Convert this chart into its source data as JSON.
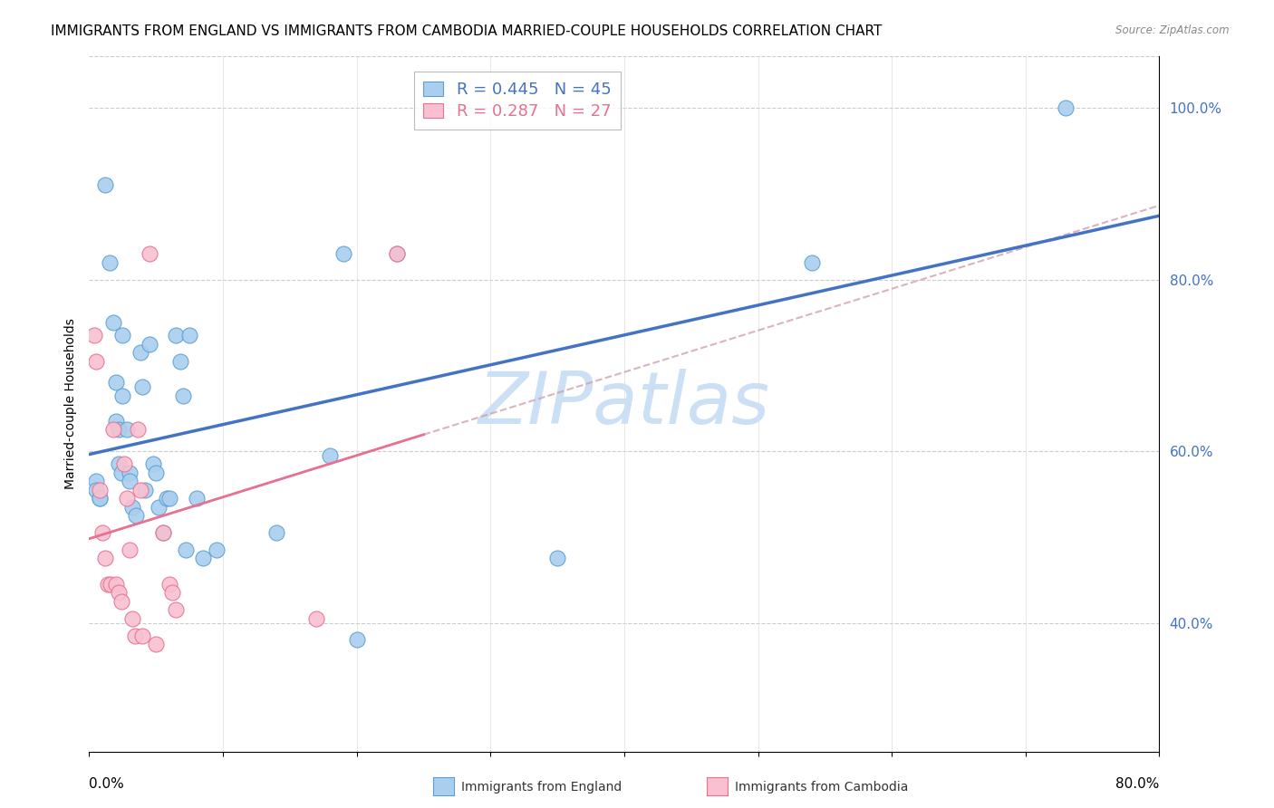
{
  "title": "IMMIGRANTS FROM ENGLAND VS IMMIGRANTS FROM CAMBODIA MARRIED-COUPLE HOUSEHOLDS CORRELATION CHART",
  "source": "Source: ZipAtlas.com",
  "ylabel": "Married-couple Households",
  "right_yticks": [
    "40.0%",
    "60.0%",
    "80.0%",
    "100.0%"
  ],
  "right_ytick_vals": [
    0.4,
    0.6,
    0.8,
    1.0
  ],
  "legend_england": "R = 0.445   N = 45",
  "legend_cambodia": "R = 0.287   N = 27",
  "england_fill_color": "#aacfee",
  "england_edge_color": "#5a9fd4",
  "cambodia_fill_color": "#f8c0d0",
  "cambodia_edge_color": "#e87090",
  "england_line_color": "#4472c4",
  "cambodia_line_color": "#e87090",
  "dashed_line_color": "#d0a0b0",
  "watermark_color": "#cce0f5",
  "xlim": [
    0.0,
    0.8
  ],
  "ylim": [
    0.25,
    1.06
  ],
  "england_scatter_x": [
    0.005,
    0.005,
    0.008,
    0.008,
    0.012,
    0.015,
    0.018,
    0.02,
    0.02,
    0.022,
    0.022,
    0.024,
    0.025,
    0.025,
    0.028,
    0.03,
    0.03,
    0.032,
    0.035,
    0.038,
    0.04,
    0.042,
    0.045,
    0.048,
    0.05,
    0.052,
    0.055,
    0.058,
    0.06,
    0.065,
    0.068,
    0.07,
    0.072,
    0.075,
    0.08,
    0.085,
    0.095,
    0.14,
    0.18,
    0.19,
    0.2,
    0.23,
    0.35,
    0.54,
    0.73
  ],
  "england_scatter_y": [
    0.565,
    0.555,
    0.545,
    0.545,
    0.91,
    0.82,
    0.75,
    0.68,
    0.635,
    0.625,
    0.585,
    0.575,
    0.735,
    0.665,
    0.625,
    0.575,
    0.565,
    0.535,
    0.525,
    0.715,
    0.675,
    0.555,
    0.725,
    0.585,
    0.575,
    0.535,
    0.505,
    0.545,
    0.545,
    0.735,
    0.705,
    0.665,
    0.485,
    0.735,
    0.545,
    0.475,
    0.485,
    0.505,
    0.595,
    0.83,
    0.38,
    0.83,
    0.475,
    0.82,
    1.0
  ],
  "cambodia_scatter_x": [
    0.004,
    0.005,
    0.008,
    0.01,
    0.012,
    0.014,
    0.016,
    0.018,
    0.02,
    0.022,
    0.024,
    0.026,
    0.028,
    0.03,
    0.032,
    0.034,
    0.036,
    0.038,
    0.04,
    0.045,
    0.05,
    0.055,
    0.06,
    0.062,
    0.065,
    0.17,
    0.23
  ],
  "cambodia_scatter_y": [
    0.735,
    0.705,
    0.555,
    0.505,
    0.475,
    0.445,
    0.445,
    0.625,
    0.445,
    0.435,
    0.425,
    0.585,
    0.545,
    0.485,
    0.405,
    0.385,
    0.625,
    0.555,
    0.385,
    0.83,
    0.375,
    0.505,
    0.445,
    0.435,
    0.415,
    0.405,
    0.83
  ],
  "title_fontsize": 11,
  "axis_label_fontsize": 10,
  "tick_fontsize": 11,
  "legend_fontsize": 13
}
